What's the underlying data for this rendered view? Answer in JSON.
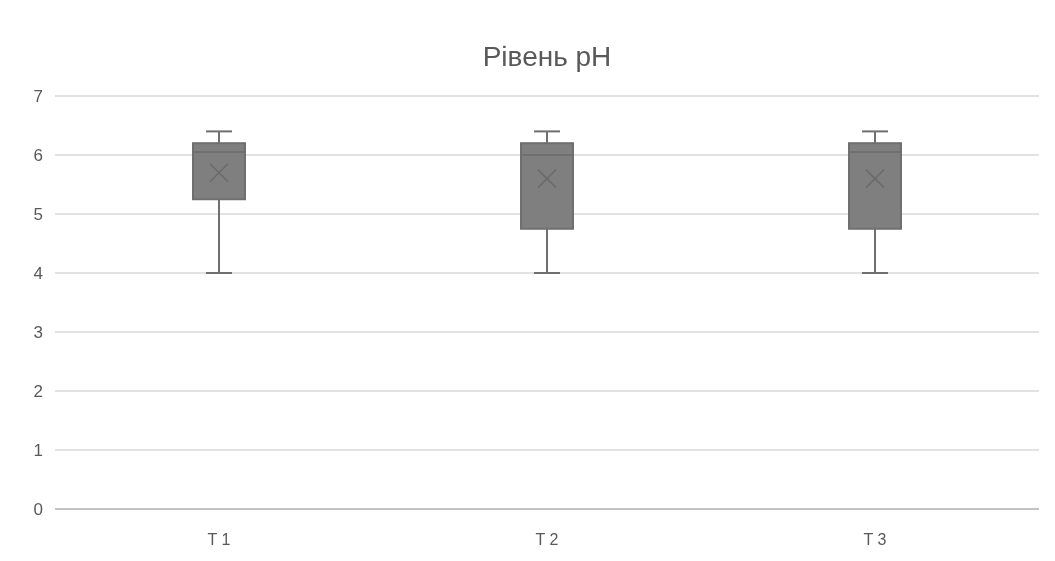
{
  "chart_data": {
    "type": "box",
    "title": "Рівень pH",
    "categories": [
      "T 1",
      "T 2",
      "T 3"
    ],
    "color": "#7f7f7f",
    "boxes": [
      {
        "low": 4,
        "q1": 5.25,
        "median": 6.05,
        "q3": 6.2,
        "high": 6.4,
        "mean": 5.7
      },
      {
        "low": 4,
        "q1": 4.75,
        "median": 6.0,
        "q3": 6.2,
        "high": 6.4,
        "mean": 5.6
      },
      {
        "low": 4,
        "q1": 4.75,
        "median": 6.05,
        "q3": 6.2,
        "high": 6.4,
        "mean": 5.6
      }
    ],
    "ylim": [
      0,
      7
    ],
    "yticks": [
      0,
      1,
      2,
      3,
      4,
      5,
      6,
      7
    ],
    "grid": "y"
  }
}
